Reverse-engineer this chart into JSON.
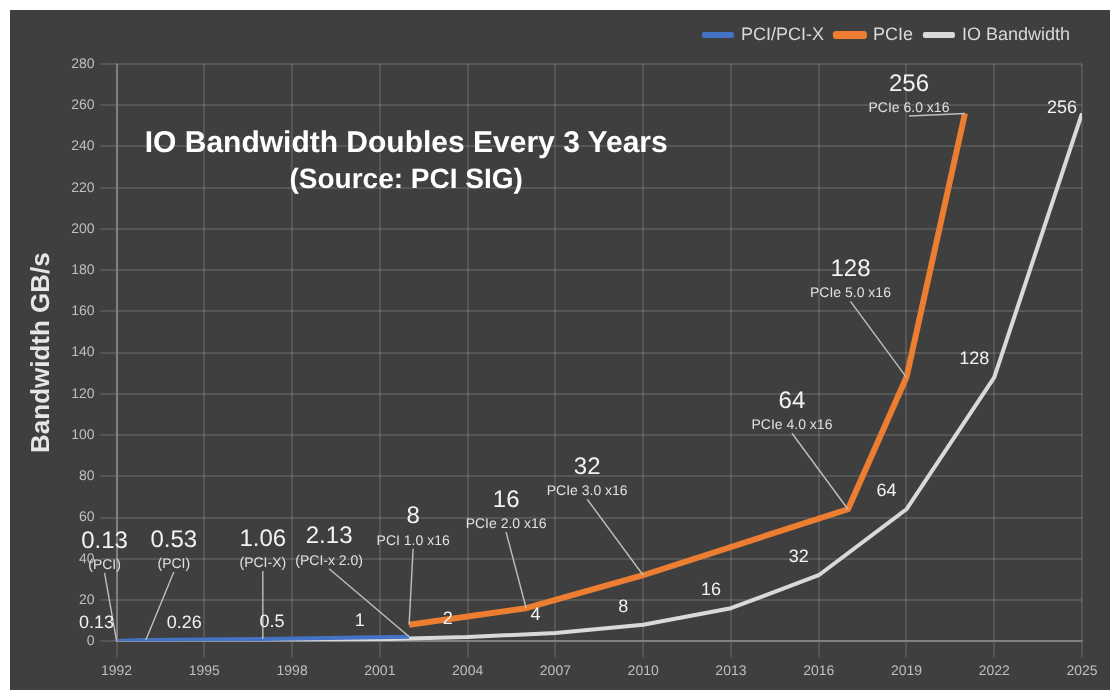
{
  "chart_data": {
    "type": "line",
    "title": "IO Bandwidth Doubles Every 3 Years",
    "subtitle": "(Source: PCI SIG)",
    "ylabel": "Bandwidth GB/s",
    "xlim": [
      1992,
      2025
    ],
    "xticks": [
      1992,
      1995,
      1998,
      2001,
      2004,
      2007,
      2010,
      2013,
      2016,
      2019,
      2022,
      2025
    ],
    "ylim": [
      0,
      280
    ],
    "yticks": [
      0,
      20,
      40,
      60,
      80,
      100,
      120,
      140,
      160,
      180,
      200,
      220,
      240,
      260,
      280
    ],
    "grid": true,
    "legend": "top right",
    "marker": "none",
    "series": [
      {
        "name": "PCI/PCI-X",
        "color": "#4472c4",
        "x": [
          1992,
          1993,
          1997,
          2002
        ],
        "values": [
          0.13,
          0.53,
          1.06,
          2.13
        ],
        "value_labels": [
          "0.13",
          "0.53",
          "1.06",
          "2.13"
        ]
      },
      {
        "name": "PCIe",
        "color": "#ed7d31",
        "x": [
          2002,
          2006,
          2010,
          2017,
          2019,
          2021
        ],
        "values": [
          8,
          16,
          32,
          64,
          128,
          256
        ],
        "value_labels": [
          "8",
          "16",
          "32",
          "64",
          "128",
          "256"
        ]
      },
      {
        "name": "IO Bandwidth",
        "color": "#d9d9d9",
        "x": [
          1992,
          1995,
          1998,
          2001,
          2004,
          2007,
          2010,
          2013,
          2016,
          2019,
          2022,
          2025
        ],
        "values": [
          0.13,
          0.26,
          0.5,
          1,
          2,
          4,
          8,
          16,
          32,
          64,
          128,
          256
        ],
        "value_labels": [
          "0.13",
          "0.26",
          "0.5",
          "1",
          "2",
          "4",
          "8",
          "16",
          "32",
          "64",
          "128",
          "256"
        ]
      }
    ],
    "annotations": [
      {
        "text": "(PCI)",
        "x": 1992,
        "y": 0.13
      },
      {
        "text": "(PCI)",
        "x": 1993,
        "y": 0.53
      },
      {
        "text": "(PCI-X)",
        "x": 1997,
        "y": 1.06
      },
      {
        "text": "(PCI-x 2.0)",
        "x": 2002,
        "y": 2.13
      },
      {
        "text": "PCI 1.0 x16",
        "x": 2002,
        "y": 8
      },
      {
        "text": "PCIe 2.0 x16",
        "x": 2006,
        "y": 16
      },
      {
        "text": "PCIe 3.0 x16",
        "x": 2010,
        "y": 32
      },
      {
        "text": "PCIe 4.0 x16",
        "x": 2017,
        "y": 64
      },
      {
        "text": "PCIe 5.0 x16",
        "x": 2019,
        "y": 128
      },
      {
        "text": "PCIe 6.0 x16",
        "x": 2021,
        "y": 256
      }
    ]
  }
}
